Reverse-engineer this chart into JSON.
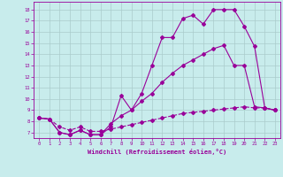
{
  "bg_color": "#c8ecec",
  "line_color": "#990099",
  "grid_color": "#aacccc",
  "xlabel": "Windchill (Refroidissement éolien,°C)",
  "ylim": [
    6.5,
    18.7
  ],
  "xlim": [
    -0.5,
    23.5
  ],
  "yticks": [
    7,
    8,
    9,
    10,
    11,
    12,
    13,
    14,
    15,
    16,
    17,
    18
  ],
  "xticks": [
    0,
    1,
    2,
    3,
    4,
    5,
    6,
    7,
    8,
    9,
    10,
    11,
    12,
    13,
    14,
    15,
    16,
    17,
    18,
    19,
    20,
    21,
    22,
    23
  ],
  "series1_x": [
    0,
    1,
    2,
    3,
    4,
    5,
    6,
    7,
    8,
    9,
    10,
    11,
    12,
    13,
    14,
    15,
    16,
    17,
    18,
    19,
    20,
    21,
    22,
    23
  ],
  "series1_y": [
    8.3,
    8.2,
    7.0,
    6.8,
    7.2,
    6.8,
    6.8,
    7.5,
    10.3,
    9.0,
    10.5,
    13.0,
    15.5,
    15.5,
    17.2,
    17.5,
    16.7,
    18.0,
    18.0,
    18.0,
    16.5,
    14.7,
    9.2,
    9.0
  ],
  "series2_x": [
    0,
    1,
    2,
    3,
    4,
    5,
    6,
    7,
    8,
    9,
    10,
    11,
    12,
    13,
    14,
    15,
    16,
    17,
    18,
    19,
    20,
    21,
    22,
    23
  ],
  "series2_y": [
    8.3,
    8.2,
    7.0,
    6.8,
    7.2,
    6.8,
    6.8,
    7.8,
    8.5,
    9.0,
    9.8,
    10.5,
    11.5,
    12.3,
    13.0,
    13.5,
    14.0,
    14.5,
    14.8,
    13.0,
    13.0,
    9.3,
    9.2,
    9.0
  ],
  "series3_x": [
    0,
    1,
    2,
    3,
    4,
    5,
    6,
    7,
    8,
    9,
    10,
    11,
    12,
    13,
    14,
    15,
    16,
    17,
    18,
    19,
    20,
    21,
    22,
    23
  ],
  "series3_y": [
    8.3,
    8.2,
    7.5,
    7.2,
    7.5,
    7.1,
    7.1,
    7.3,
    7.5,
    7.7,
    7.9,
    8.1,
    8.3,
    8.5,
    8.7,
    8.8,
    8.9,
    9.0,
    9.1,
    9.2,
    9.3,
    9.2,
    9.2,
    9.0
  ]
}
